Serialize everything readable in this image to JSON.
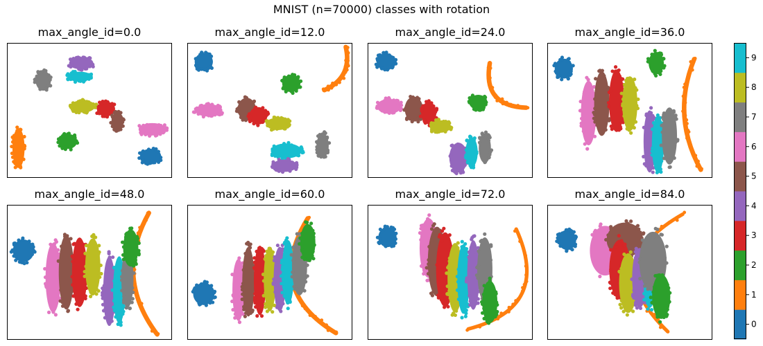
{
  "figure": {
    "title": "MNIST (n=70000) classes with rotation"
  },
  "palette": {
    "0": "#1f77b4",
    "1": "#ff7f0e",
    "2": "#2ca02c",
    "3": "#d62728",
    "4": "#9467bd",
    "5": "#8c564b",
    "6": "#e377c2",
    "7": "#7f7f7f",
    "8": "#bcbd22",
    "9": "#17becf"
  },
  "chart_data": [
    {
      "type": "scatter",
      "title": "max_angle_id=0.0",
      "clusters": [
        {
          "label": 0,
          "shape": "blob",
          "cx": 0.87,
          "cy": 0.16,
          "rx": 0.07,
          "ry": 0.06
        },
        {
          "label": 1,
          "shape": "blob",
          "cx": 0.07,
          "cy": 0.22,
          "rx": 0.04,
          "ry": 0.16
        },
        {
          "label": 2,
          "shape": "blob",
          "cx": 0.37,
          "cy": 0.27,
          "rx": 0.06,
          "ry": 0.06
        },
        {
          "label": 3,
          "shape": "blob",
          "cx": 0.6,
          "cy": 0.51,
          "rx": 0.06,
          "ry": 0.06
        },
        {
          "label": 5,
          "shape": "blob",
          "cx": 0.67,
          "cy": 0.42,
          "rx": 0.04,
          "ry": 0.07
        },
        {
          "label": 8,
          "shape": "blob",
          "cx": 0.46,
          "cy": 0.53,
          "rx": 0.08,
          "ry": 0.05
        },
        {
          "label": 6,
          "shape": "blob",
          "cx": 0.88,
          "cy": 0.36,
          "rx": 0.09,
          "ry": 0.05
        },
        {
          "label": 7,
          "shape": "blob",
          "cx": 0.22,
          "cy": 0.72,
          "rx": 0.05,
          "ry": 0.08
        },
        {
          "label": 4,
          "shape": "blob",
          "cx": 0.45,
          "cy": 0.85,
          "rx": 0.08,
          "ry": 0.05
        },
        {
          "label": 9,
          "shape": "blob",
          "cx": 0.44,
          "cy": 0.75,
          "rx": 0.08,
          "ry": 0.04
        }
      ]
    },
    {
      "type": "scatter",
      "title": "max_angle_id=12.0",
      "clusters": [
        {
          "label": 0,
          "shape": "blob",
          "cx": 0.1,
          "cy": 0.86,
          "rx": 0.06,
          "ry": 0.07
        },
        {
          "label": 1,
          "shape": "arc",
          "x1": 0.83,
          "y1": 0.65,
          "x2": 0.96,
          "y2": 0.97,
          "bend": 0.03,
          "w": 0.05
        },
        {
          "label": 6,
          "shape": "blob",
          "cx": 0.13,
          "cy": 0.5,
          "rx": 0.09,
          "ry": 0.05
        },
        {
          "label": 5,
          "shape": "blob",
          "cx": 0.36,
          "cy": 0.51,
          "rx": 0.06,
          "ry": 0.09
        },
        {
          "label": 3,
          "shape": "blob",
          "cx": 0.43,
          "cy": 0.46,
          "rx": 0.06,
          "ry": 0.07
        },
        {
          "label": 8,
          "shape": "blob",
          "cx": 0.55,
          "cy": 0.4,
          "rx": 0.08,
          "ry": 0.05
        },
        {
          "label": 2,
          "shape": "blob",
          "cx": 0.63,
          "cy": 0.7,
          "rx": 0.06,
          "ry": 0.07
        },
        {
          "label": 9,
          "shape": "blob",
          "cx": 0.6,
          "cy": 0.2,
          "rx": 0.1,
          "ry": 0.06
        },
        {
          "label": 4,
          "shape": "blob",
          "cx": 0.59,
          "cy": 0.09,
          "rx": 0.08,
          "ry": 0.05
        },
        {
          "label": 7,
          "shape": "blob",
          "cx": 0.82,
          "cy": 0.24,
          "rx": 0.04,
          "ry": 0.1
        }
      ]
    },
    {
      "type": "scatter",
      "title": "max_angle_id=24.0",
      "clusters": [
        {
          "label": 0,
          "shape": "blob",
          "cx": 0.11,
          "cy": 0.86,
          "rx": 0.06,
          "ry": 0.07
        },
        {
          "label": 1,
          "shape": "arc",
          "x1": 0.74,
          "y1": 0.85,
          "x2": 0.96,
          "y2": 0.52,
          "bend": 0.05,
          "w": 0.05
        },
        {
          "label": 6,
          "shape": "blob",
          "cx": 0.13,
          "cy": 0.53,
          "rx": 0.08,
          "ry": 0.06
        },
        {
          "label": 5,
          "shape": "blob",
          "cx": 0.28,
          "cy": 0.51,
          "rx": 0.06,
          "ry": 0.1
        },
        {
          "label": 3,
          "shape": "blob",
          "cx": 0.37,
          "cy": 0.48,
          "rx": 0.05,
          "ry": 0.09
        },
        {
          "label": 8,
          "shape": "blob",
          "cx": 0.44,
          "cy": 0.38,
          "rx": 0.07,
          "ry": 0.05
        },
        {
          "label": 2,
          "shape": "blob",
          "cx": 0.67,
          "cy": 0.56,
          "rx": 0.06,
          "ry": 0.06
        },
        {
          "label": 4,
          "shape": "blob",
          "cx": 0.55,
          "cy": 0.15,
          "rx": 0.06,
          "ry": 0.12
        },
        {
          "label": 9,
          "shape": "blob",
          "cx": 0.63,
          "cy": 0.19,
          "rx": 0.04,
          "ry": 0.12
        },
        {
          "label": 7,
          "shape": "blob",
          "cx": 0.71,
          "cy": 0.22,
          "rx": 0.04,
          "ry": 0.12
        }
      ]
    },
    {
      "type": "scatter",
      "title": "max_angle_id=36.0",
      "clusters": [
        {
          "label": 0,
          "shape": "blob",
          "cx": 0.1,
          "cy": 0.81,
          "rx": 0.06,
          "ry": 0.08
        },
        {
          "label": 2,
          "shape": "blob",
          "cx": 0.66,
          "cy": 0.85,
          "rx": 0.05,
          "ry": 0.09
        },
        {
          "label": 1,
          "shape": "arc",
          "x1": 0.89,
          "y1": 0.88,
          "x2": 0.93,
          "y2": 0.06,
          "bend": 0.04,
          "w": 0.05
        },
        {
          "label": 6,
          "shape": "blob",
          "cx": 0.25,
          "cy": 0.48,
          "rx": 0.05,
          "ry": 0.26
        },
        {
          "label": 5,
          "shape": "blob",
          "cx": 0.33,
          "cy": 0.55,
          "rx": 0.05,
          "ry": 0.26
        },
        {
          "label": 3,
          "shape": "blob",
          "cx": 0.42,
          "cy": 0.57,
          "rx": 0.05,
          "ry": 0.25
        },
        {
          "label": 8,
          "shape": "blob",
          "cx": 0.5,
          "cy": 0.55,
          "rx": 0.05,
          "ry": 0.22
        },
        {
          "label": 4,
          "shape": "blob",
          "cx": 0.62,
          "cy": 0.27,
          "rx": 0.04,
          "ry": 0.25
        },
        {
          "label": 9,
          "shape": "blob",
          "cx": 0.67,
          "cy": 0.25,
          "rx": 0.04,
          "ry": 0.23
        },
        {
          "label": 7,
          "shape": "blob",
          "cx": 0.74,
          "cy": 0.31,
          "rx": 0.05,
          "ry": 0.23
        }
      ]
    },
    {
      "type": "scatter",
      "title": "max_angle_id=48.0",
      "clusters": [
        {
          "label": 0,
          "shape": "blob",
          "cx": 0.1,
          "cy": 0.66,
          "rx": 0.07,
          "ry": 0.09
        },
        {
          "label": 1,
          "shape": "arc",
          "x1": 0.86,
          "y1": 0.94,
          "x2": 0.91,
          "y2": 0.04,
          "bend": 0.06,
          "w": 0.05
        },
        {
          "label": 6,
          "shape": "blob",
          "cx": 0.28,
          "cy": 0.46,
          "rx": 0.05,
          "ry": 0.28
        },
        {
          "label": 5,
          "shape": "blob",
          "cx": 0.36,
          "cy": 0.5,
          "rx": 0.05,
          "ry": 0.3
        },
        {
          "label": 3,
          "shape": "blob",
          "cx": 0.44,
          "cy": 0.5,
          "rx": 0.05,
          "ry": 0.28
        },
        {
          "label": 8,
          "shape": "blob",
          "cx": 0.52,
          "cy": 0.54,
          "rx": 0.05,
          "ry": 0.23
        },
        {
          "label": 4,
          "shape": "blob",
          "cx": 0.62,
          "cy": 0.36,
          "rx": 0.04,
          "ry": 0.28
        },
        {
          "label": 9,
          "shape": "blob",
          "cx": 0.68,
          "cy": 0.37,
          "rx": 0.04,
          "ry": 0.27
        },
        {
          "label": 7,
          "shape": "blob",
          "cx": 0.73,
          "cy": 0.45,
          "rx": 0.04,
          "ry": 0.23
        },
        {
          "label": 2,
          "shape": "blob",
          "cx": 0.75,
          "cy": 0.68,
          "rx": 0.05,
          "ry": 0.15
        }
      ]
    },
    {
      "type": "scatter",
      "title": "max_angle_id=60.0",
      "clusters": [
        {
          "label": 0,
          "shape": "blob",
          "cx": 0.1,
          "cy": 0.34,
          "rx": 0.07,
          "ry": 0.09
        },
        {
          "label": 1,
          "shape": "arc",
          "x1": 0.73,
          "y1": 0.9,
          "x2": 0.9,
          "y2": 0.05,
          "bend": 0.09,
          "w": 0.05
        },
        {
          "label": 6,
          "shape": "blob",
          "cx": 0.31,
          "cy": 0.37,
          "rx": 0.04,
          "ry": 0.25
        },
        {
          "label": 5,
          "shape": "blob",
          "cx": 0.37,
          "cy": 0.43,
          "rx": 0.04,
          "ry": 0.28
        },
        {
          "label": 3,
          "shape": "blob",
          "cx": 0.44,
          "cy": 0.44,
          "rx": 0.04,
          "ry": 0.28
        },
        {
          "label": 8,
          "shape": "blob",
          "cx": 0.5,
          "cy": 0.45,
          "rx": 0.04,
          "ry": 0.26
        },
        {
          "label": 4,
          "shape": "blob",
          "cx": 0.56,
          "cy": 0.45,
          "rx": 0.04,
          "ry": 0.26
        },
        {
          "label": 9,
          "shape": "blob",
          "cx": 0.61,
          "cy": 0.5,
          "rx": 0.04,
          "ry": 0.26
        },
        {
          "label": 7,
          "shape": "blob",
          "cx": 0.68,
          "cy": 0.55,
          "rx": 0.05,
          "ry": 0.24
        },
        {
          "label": 2,
          "shape": "blob",
          "cx": 0.73,
          "cy": 0.72,
          "rx": 0.05,
          "ry": 0.15
        }
      ]
    },
    {
      "type": "scatter",
      "title": "max_angle_id=72.0",
      "clusters": [
        {
          "label": 0,
          "shape": "blob",
          "cx": 0.12,
          "cy": 0.76,
          "rx": 0.06,
          "ry": 0.08
        },
        {
          "label": 1,
          "shape": "arc",
          "x1": 0.61,
          "y1": 0.08,
          "x2": 0.9,
          "y2": 0.82,
          "bend": 0.1,
          "w": 0.04
        },
        {
          "label": 6,
          "shape": "blob",
          "cx": 0.37,
          "cy": 0.68,
          "rx": 0.06,
          "ry": 0.24
        },
        {
          "label": 5,
          "shape": "blob",
          "cx": 0.42,
          "cy": 0.58,
          "rx": 0.06,
          "ry": 0.28
        },
        {
          "label": 3,
          "shape": "blob",
          "cx": 0.47,
          "cy": 0.52,
          "rx": 0.06,
          "ry": 0.3
        },
        {
          "label": 8,
          "shape": "blob",
          "cx": 0.53,
          "cy": 0.46,
          "rx": 0.05,
          "ry": 0.28
        },
        {
          "label": 9,
          "shape": "blob",
          "cx": 0.58,
          "cy": 0.45,
          "rx": 0.04,
          "ry": 0.28
        },
        {
          "label": 4,
          "shape": "blob",
          "cx": 0.64,
          "cy": 0.48,
          "rx": 0.04,
          "ry": 0.28
        },
        {
          "label": 7,
          "shape": "blob",
          "cx": 0.71,
          "cy": 0.52,
          "rx": 0.05,
          "ry": 0.26
        },
        {
          "label": 2,
          "shape": "blob",
          "cx": 0.74,
          "cy": 0.28,
          "rx": 0.05,
          "ry": 0.17
        }
      ]
    },
    {
      "type": "scatter",
      "title": "max_angle_id=84.0",
      "clusters": [
        {
          "label": 0,
          "shape": "blob",
          "cx": 0.12,
          "cy": 0.74,
          "rx": 0.06,
          "ry": 0.08
        },
        {
          "label": 1,
          "shape": "arc",
          "x1": 0.73,
          "y1": 0.06,
          "x2": 0.82,
          "y2": 0.93,
          "bend": -0.12,
          "w": 0.04
        },
        {
          "label": 6,
          "shape": "blob",
          "cx": 0.35,
          "cy": 0.66,
          "rx": 0.1,
          "ry": 0.2
        },
        {
          "label": 5,
          "shape": "blob",
          "cx": 0.47,
          "cy": 0.74,
          "rx": 0.12,
          "ry": 0.14
        },
        {
          "label": 3,
          "shape": "blob",
          "cx": 0.44,
          "cy": 0.52,
          "rx": 0.07,
          "ry": 0.24
        },
        {
          "label": 8,
          "shape": "blob",
          "cx": 0.49,
          "cy": 0.42,
          "rx": 0.06,
          "ry": 0.24
        },
        {
          "label": 4,
          "shape": "blob",
          "cx": 0.56,
          "cy": 0.46,
          "rx": 0.05,
          "ry": 0.24
        },
        {
          "label": 9,
          "shape": "blob",
          "cx": 0.62,
          "cy": 0.42,
          "rx": 0.04,
          "ry": 0.2
        },
        {
          "label": 7,
          "shape": "blob",
          "cx": 0.64,
          "cy": 0.58,
          "rx": 0.09,
          "ry": 0.24
        },
        {
          "label": 2,
          "shape": "blob",
          "cx": 0.69,
          "cy": 0.32,
          "rx": 0.06,
          "ry": 0.18
        }
      ]
    }
  ],
  "colorbar": {
    "labels": [
      "0",
      "1",
      "2",
      "3",
      "4",
      "5",
      "6",
      "7",
      "8",
      "9"
    ]
  }
}
